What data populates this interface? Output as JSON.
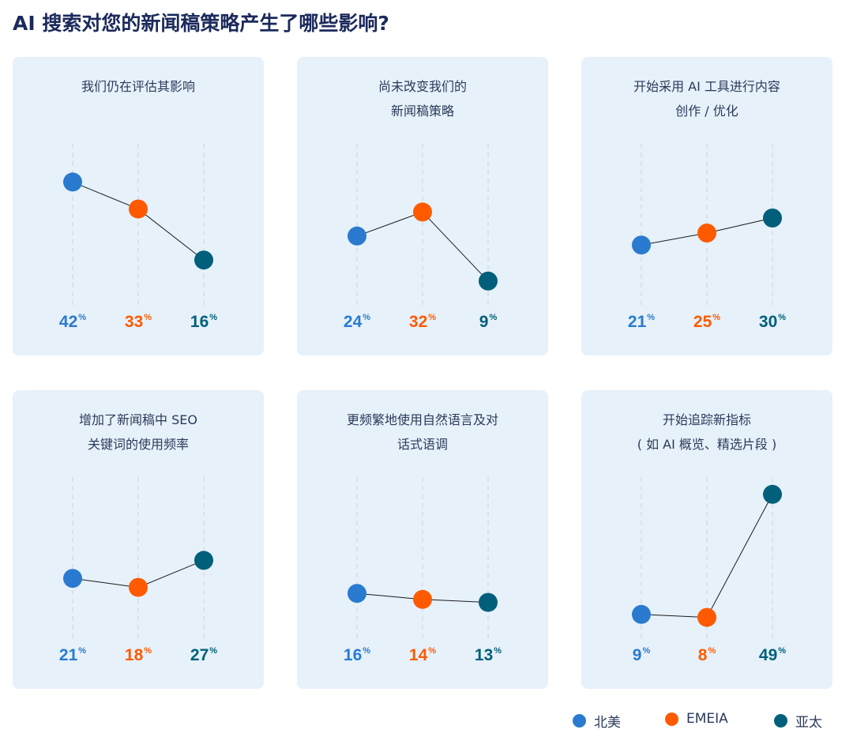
{
  "chart_data": {
    "type": "line",
    "title": "AI 搜索对您的新闻稿策略产生了哪些影响?",
    "series_colors": {
      "北美": "#2a7ad0",
      "EMEIA": "#ff5a00",
      "亚太": "#005f7a"
    },
    "legend": {
      "placement": "bottom-right",
      "entries": [
        "北美",
        "EMEIA",
        "亚太"
      ]
    },
    "value_suffix": "%",
    "panels": [
      {
        "title_lines": [
          "我们仍在评估其影响"
        ],
        "values": [
          42,
          33,
          16
        ]
      },
      {
        "title_lines": [
          "尚未改变我们的",
          "新闻稿策略"
        ],
        "values": [
          24,
          32,
          9
        ]
      },
      {
        "title_lines": [
          "开始采用 AI 工具进行内容",
          "创作 / 优化"
        ],
        "values": [
          21,
          25,
          30
        ]
      },
      {
        "title_lines": [
          "增加了新闻稿中 SEO",
          "关键词的使用频率"
        ],
        "values": [
          21,
          18,
          27
        ]
      },
      {
        "title_lines": [
          "更频繁地使用自然语言及对",
          "话式语调"
        ],
        "values": [
          16,
          14,
          13
        ]
      },
      {
        "title_lines": [
          "开始追踪新指标",
          "( 如 AI 概览、精选片段 )"
        ],
        "values": [
          9,
          8,
          49
        ]
      }
    ]
  }
}
